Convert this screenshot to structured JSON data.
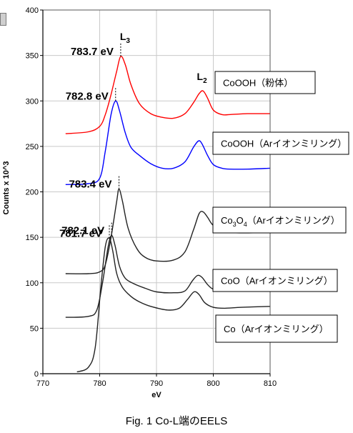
{
  "caption": "Fig. 1 Co-L端のEELS",
  "chart_data": {
    "type": "line",
    "xlabel": "eV",
    "ylabel": "Counts x 10^3",
    "xlim": [
      770,
      810
    ],
    "ylim": [
      0,
      400
    ],
    "xticks": [
      770,
      780,
      790,
      800,
      810
    ],
    "yticks": [
      0,
      50,
      100,
      150,
      200,
      250,
      300,
      350,
      400
    ],
    "grid": true,
    "edge_labels": {
      "L3": {
        "main": "L",
        "sub": "3"
      },
      "L2": {
        "main": "L",
        "sub": "2"
      }
    },
    "series": [
      {
        "name": "CoOOH（粉体）",
        "color": "#ff0000",
        "peak_label": "783.7 eV",
        "x": [
          774,
          778,
          780,
          781,
          782,
          783,
          783.7,
          784.5,
          785.5,
          787,
          789,
          791,
          793,
          795,
          796.5,
          797.5,
          798.2,
          799,
          800,
          801.5,
          803,
          806,
          810
        ],
        "y": [
          264,
          266,
          272,
          285,
          307,
          333,
          349,
          340,
          318,
          297,
          286,
          282,
          281,
          286,
          298,
          308,
          311,
          303,
          290,
          285,
          285,
          286,
          286
        ]
      },
      {
        "name": "CoOOH（Arイオンミリング）",
        "color": "#0000ff",
        "peak_label": "782.8 eV",
        "x": [
          774,
          778,
          780,
          781,
          782,
          782.8,
          783.5,
          784.5,
          785.5,
          787,
          789,
          791,
          793,
          795,
          796.5,
          797.4,
          798,
          799,
          800,
          801.5,
          803,
          806,
          810
        ],
        "y": [
          208,
          209,
          215,
          245,
          285,
          300,
          289,
          265,
          249,
          240,
          231,
          226,
          226,
          233,
          249,
          256,
          253,
          240,
          230,
          226,
          225,
          225,
          226
        ]
      },
      {
        "name": "Co3O4（Arイオンミリング）",
        "color": "#222222",
        "peak_label": "783.4 eV",
        "x": [
          774,
          778,
          780,
          781,
          782,
          783,
          783.4,
          784,
          785,
          786.5,
          788,
          790,
          793,
          795,
          796.5,
          797.5,
          798.2,
          799,
          800,
          802,
          804,
          807,
          810
        ],
        "y": [
          110,
          110,
          112,
          120,
          150,
          190,
          203,
          190,
          160,
          138,
          128,
          124,
          125,
          134,
          158,
          176,
          178,
          172,
          163,
          156,
          155,
          155,
          156
        ]
      },
      {
        "name": "CoO（Arイオンミリング）",
        "color": "#222222",
        "peak_label": "782.1 eV",
        "x": [
          774,
          778,
          779.5,
          780.5,
          781.5,
          782.1,
          782.7,
          783.5,
          784.5,
          786,
          788,
          790,
          793,
          795,
          796.3,
          797.2,
          798,
          799,
          800,
          802,
          805,
          810
        ],
        "y": [
          62,
          63,
          70,
          100,
          140,
          152,
          141,
          118,
          105,
          99,
          94,
          90,
          89,
          91,
          102,
          108,
          106,
          98,
          93,
          91,
          91,
          92
        ]
      },
      {
        "name": "Co（Arイオンミリング）",
        "color": "#222222",
        "peak_label": "781.7 eV",
        "x": [
          776,
          778,
          779.2,
          780.2,
          781,
          781.7,
          782.3,
          783,
          784,
          785.5,
          787,
          789,
          792,
          794,
          795.5,
          796.6,
          797.5,
          798.5,
          800,
          802,
          805,
          810
        ],
        "y": [
          2,
          7,
          28,
          95,
          140,
          149,
          135,
          110,
          95,
          85,
          79,
          74,
          70,
          72,
          82,
          90,
          87,
          78,
          73,
          72,
          73,
          74
        ]
      }
    ],
    "legend_labels": [
      {
        "text": "CoOOH（粉体）"
      },
      {
        "text": "CoOOH（Arイオンミリング）"
      },
      {
        "pre": "Co",
        "sub1": "3",
        "mid": "O",
        "sub2": "4",
        "post": "（Arイオンミリング）"
      },
      {
        "text": "CoO（Arイオンミリング）"
      },
      {
        "text": "Co（Arイオンミリング）"
      }
    ]
  }
}
